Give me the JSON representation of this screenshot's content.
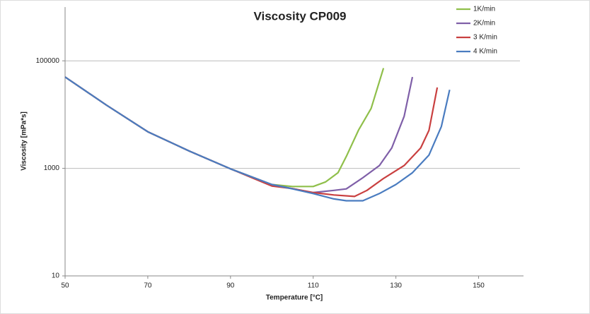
{
  "chart_data": {
    "type": "line",
    "title": "Viscosity CP009",
    "xlabel": "Temperature [°C]",
    "ylabel": "Viscosity [mPa*s]",
    "xlim": [
      50,
      160
    ],
    "xticks": [
      50,
      70,
      90,
      110,
      130,
      150
    ],
    "ylim": [
      10,
      1000000
    ],
    "yticks": [
      10,
      1000,
      100000
    ],
    "log_y": true,
    "grid": true,
    "legend": "top-right",
    "series": [
      {
        "name": "1K/min",
        "color": "#8fbf4a",
        "x": [
          50,
          60,
          70,
          80,
          90,
          100,
          105,
          110,
          113,
          116,
          118,
          121,
          124,
          127
        ],
        "values": [
          50000,
          15000,
          4800,
          2100,
          980,
          500,
          460,
          460,
          560,
          830,
          1660,
          5200,
          13000,
          73000
        ]
      },
      {
        "name": "2K/min",
        "color": "#7f5fa8",
        "x": [
          50,
          60,
          70,
          80,
          90,
          100,
          105,
          110,
          115,
          118,
          122,
          126,
          129,
          132,
          134
        ],
        "values": [
          50000,
          15000,
          4800,
          2100,
          980,
          500,
          420,
          355,
          390,
          415,
          670,
          1130,
          2400,
          9300,
          50000
        ]
      },
      {
        "name": "3 K/min",
        "color": "#c94040",
        "x": [
          50,
          60,
          70,
          80,
          90,
          100,
          105,
          110,
          115,
          120,
          123,
          127,
          132,
          136,
          138,
          140
        ],
        "values": [
          50000,
          15000,
          4800,
          2100,
          980,
          470,
          420,
          355,
          320,
          300,
          390,
          650,
          1130,
          2400,
          5100,
          32000
        ]
      },
      {
        "name": "4 K/min",
        "color": "#4a7cc0",
        "x": [
          50,
          60,
          70,
          80,
          90,
          100,
          105,
          110,
          115,
          118,
          122,
          126,
          130,
          134,
          138,
          141,
          143
        ],
        "values": [
          50000,
          15000,
          4800,
          2100,
          980,
          500,
          415,
          340,
          270,
          250,
          250,
          340,
          500,
          830,
          1770,
          6000,
          29000
        ]
      }
    ]
  }
}
